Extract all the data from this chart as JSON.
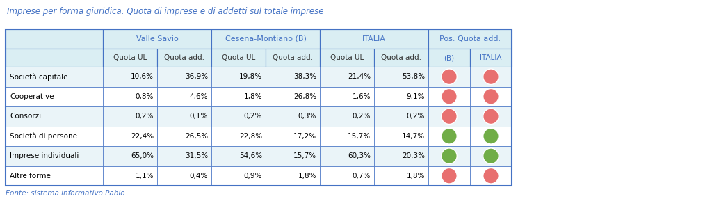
{
  "title": "Imprese per forma giuridica. Quota di imprese e di addetti sul totale imprese",
  "footnote": "Fonte: sistema informativo Pablo",
  "col_groups": [
    "Valle Savio",
    "Cesena-Montiano (B)",
    "ITALIA",
    "Pos. Quota add."
  ],
  "col_headers": [
    "Quota UL",
    "Quota add.",
    "Quota UL",
    "Quota add.",
    "Quota UL",
    "Quota add.",
    "(B)",
    "ITALIA"
  ],
  "row_labels": [
    "Società capitale",
    "Cooperative",
    "Consorzi",
    "Società di persone",
    "Imprese individuali",
    "Altre forme"
  ],
  "data": [
    [
      "10,6%",
      "36,9%",
      "19,8%",
      "38,3%",
      "21,4%",
      "53,8%",
      "red",
      "red"
    ],
    [
      "0,8%",
      "4,6%",
      "1,8%",
      "26,8%",
      "1,6%",
      "9,1%",
      "red",
      "red"
    ],
    [
      "0,2%",
      "0,1%",
      "0,2%",
      "0,3%",
      "0,2%",
      "0,2%",
      "red",
      "red"
    ],
    [
      "22,4%",
      "26,5%",
      "22,8%",
      "17,2%",
      "15,7%",
      "14,7%",
      "green",
      "green"
    ],
    [
      "65,0%",
      "31,5%",
      "54,6%",
      "15,7%",
      "60,3%",
      "20,3%",
      "green",
      "green"
    ],
    [
      "1,1%",
      "0,4%",
      "0,9%",
      "1,8%",
      "0,7%",
      "1,8%",
      "red",
      "red"
    ]
  ],
  "header_bg": "#DAEEF3",
  "header_text_color": "#4472C4",
  "subheader_text_color": "#333333",
  "italia_subheader_color": "#4472C4",
  "row_bg_even": "#EAF4F8",
  "row_bg_odd": "#FFFFFF",
  "border_color": "#4472C4",
  "title_color": "#4472C4",
  "footnote_color": "#4472C4",
  "red_circle": "#E87070",
  "green_circle": "#70AD47",
  "fig_w": 10.24,
  "fig_h": 2.99,
  "dpi": 100
}
